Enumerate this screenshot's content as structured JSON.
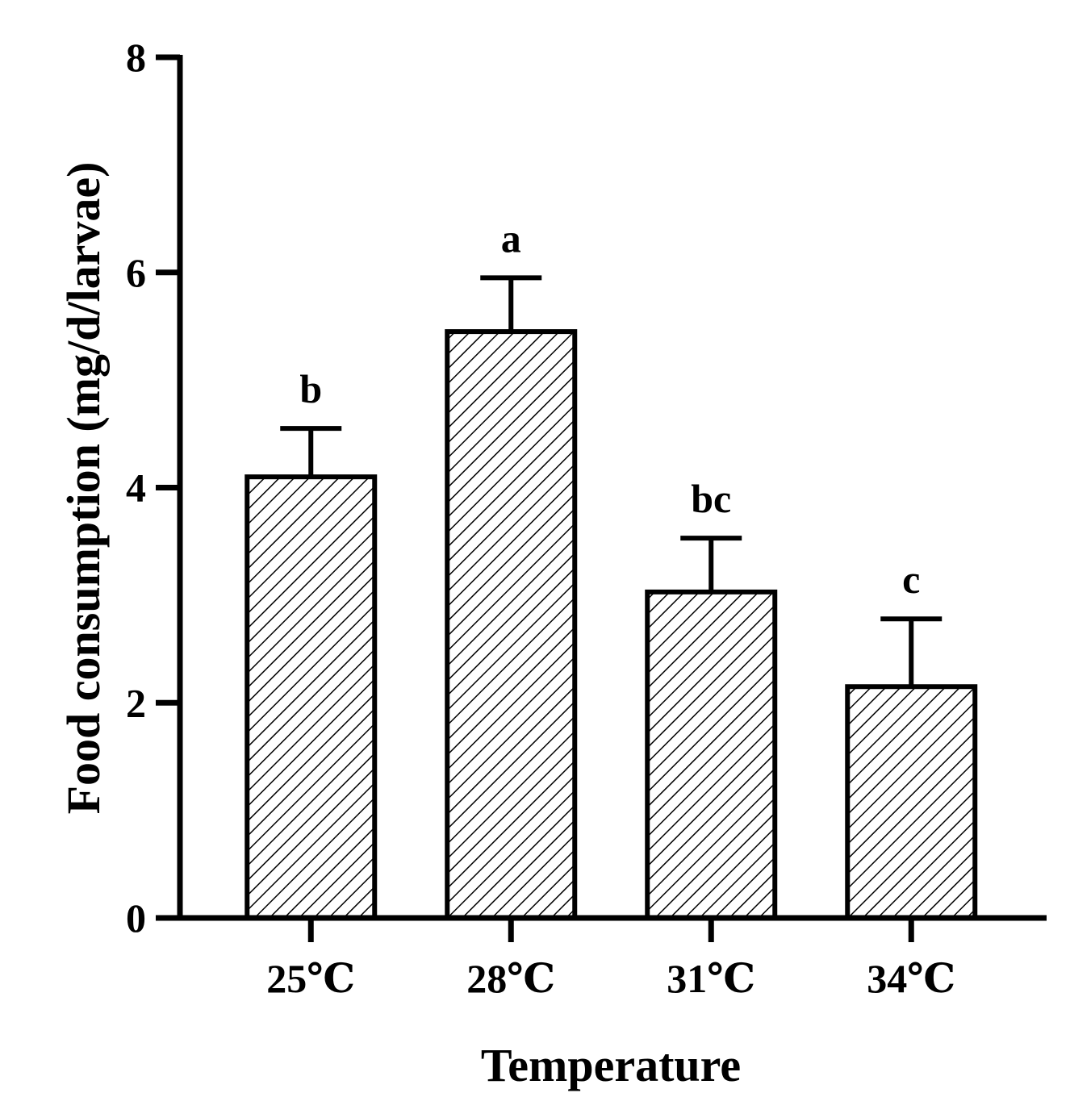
{
  "chart_data": {
    "type": "bar",
    "title": "",
    "xlabel": "Temperature",
    "ylabel": "Food consumption (mg/d/larvae)",
    "ylim": [
      0,
      8
    ],
    "yticks": [
      0,
      2,
      4,
      6,
      8
    ],
    "grid": false,
    "legend": "none",
    "categories": [
      "25℃",
      "28℃",
      "31℃",
      "34℃"
    ],
    "values": [
      4.1,
      5.45,
      3.03,
      2.15
    ],
    "error_upper": [
      0.45,
      0.5,
      0.5,
      0.63
    ],
    "significance": [
      "b",
      "a",
      "bc",
      "c"
    ],
    "bar_fill": "hatched",
    "colors": {
      "bar_outline": "#000000",
      "hatch": "#000000",
      "axis": "#000000"
    }
  }
}
